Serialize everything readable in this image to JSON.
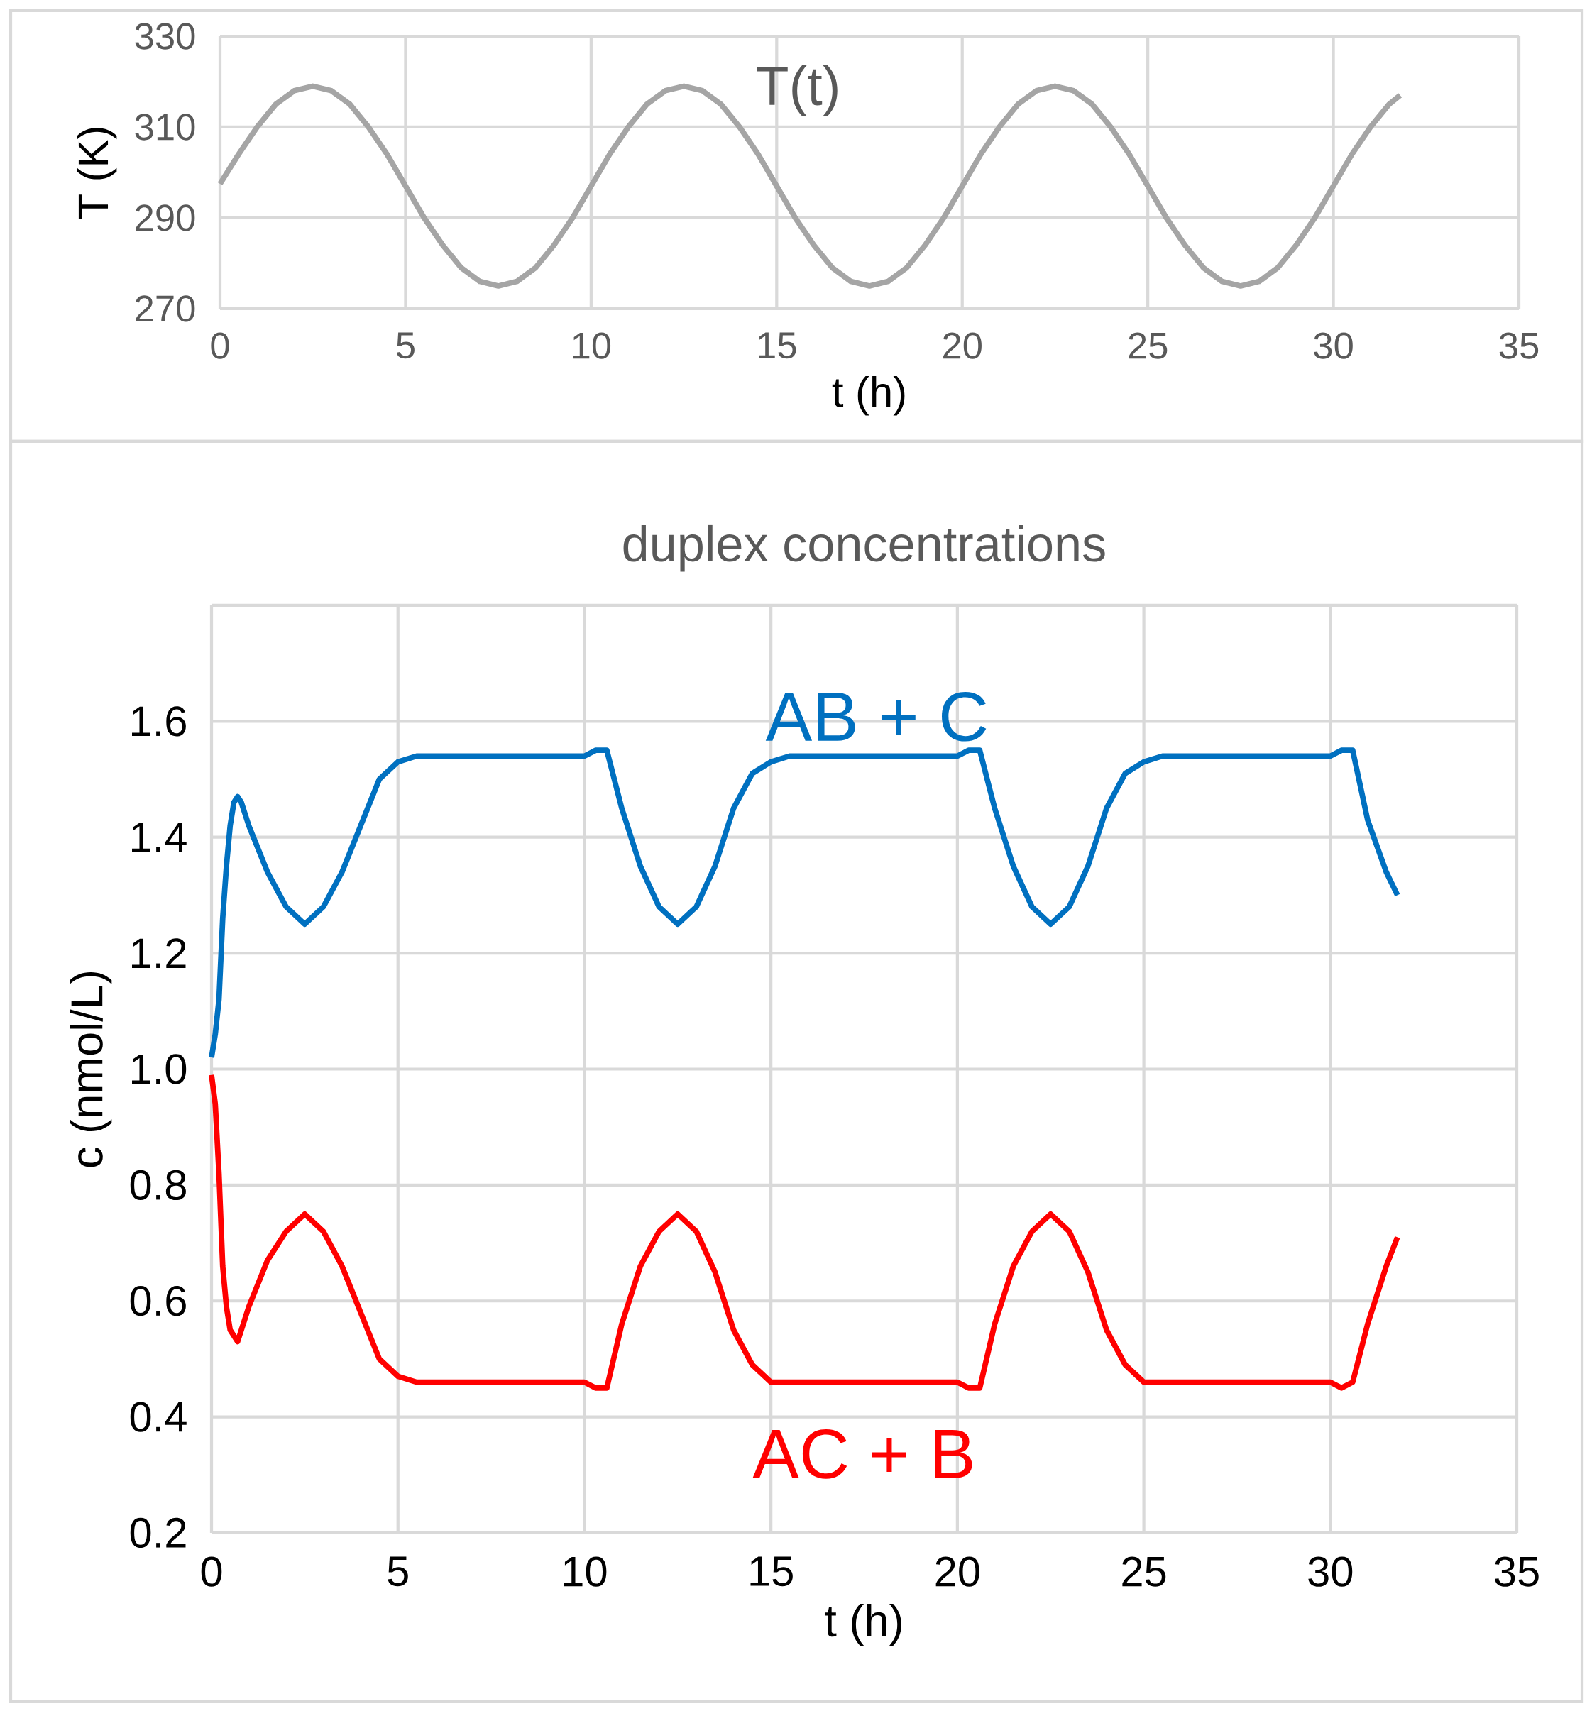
{
  "chart_data": [
    {
      "type": "line",
      "xlabel": "t (h)",
      "ylabel": "T (K)",
      "xlim": [
        0,
        35
      ],
      "xticks": [
        0,
        5,
        10,
        15,
        20,
        25,
        30,
        35
      ],
      "ylim": [
        270,
        330
      ],
      "yticks": [
        270,
        290,
        310,
        330
      ],
      "grid": true,
      "marker": "none",
      "line_style": "solid",
      "series": [
        {
          "name": "T(t)",
          "color": "#a5a5a5",
          "x": [
            0,
            0.5,
            1,
            1.5,
            2,
            2.5,
            3,
            3.5,
            4,
            4.5,
            5,
            5.5,
            6,
            6.5,
            7,
            7.5,
            8,
            8.5,
            9,
            9.5,
            10,
            10.5,
            11,
            11.5,
            12,
            12.5,
            13,
            13.5,
            14,
            14.5,
            15,
            15.5,
            16,
            16.5,
            17,
            17.5,
            18,
            18.5,
            19,
            19.5,
            20,
            20.5,
            21,
            21.5,
            22,
            22.5,
            23,
            23.5,
            24,
            24.5,
            25,
            25.5,
            26,
            26.5,
            27,
            27.5,
            28,
            28.5,
            29,
            29.5,
            30,
            30.5,
            31,
            31.5,
            31.8
          ],
          "values": [
            297.5,
            304,
            310,
            315,
            318,
            319,
            318,
            315,
            310,
            304,
            297,
            290,
            284,
            279,
            276,
            275,
            276,
            279,
            284,
            290,
            297,
            304,
            310,
            315,
            318,
            319,
            318,
            315,
            310,
            304,
            297,
            290,
            284,
            279,
            276,
            275,
            276,
            279,
            284,
            290,
            297,
            304,
            310,
            315,
            318,
            319,
            318,
            315,
            310,
            304,
            297,
            290,
            284,
            279,
            276,
            275,
            276,
            279,
            284,
            290,
            297,
            304,
            310,
            315,
            317
          ]
        }
      ]
    },
    {
      "type": "line",
      "title": "duplex concentrations",
      "xlabel": "t (h)",
      "ylabel": "c (nmol/L)",
      "xlim": [
        0,
        35
      ],
      "xticks": [
        0,
        5,
        10,
        15,
        20,
        25,
        30,
        35
      ],
      "ylim": [
        0.2,
        1.8
      ],
      "yticks": [
        0.2,
        0.4,
        0.6,
        0.8,
        {
          "value": 1.0,
          "label": "1.0"
        },
        1.2,
        1.4,
        1.6,
        {
          "value": 1.8,
          "label": null
        }
      ],
      "grid": true,
      "marker": "none",
      "line_style": "solid",
      "series": [
        {
          "name": "AB + C",
          "color": "#0070c0",
          "x": [
            0,
            0.1,
            0.2,
            0.3,
            0.4,
            0.5,
            0.6,
            0.7,
            0.8,
            1.0,
            1.5,
            2.0,
            2.5,
            3.0,
            3.5,
            4.0,
            4.5,
            5.0,
            5.5,
            10,
            10.3,
            10.6,
            11,
            11.5,
            12,
            12.5,
            13,
            13.5,
            14,
            14.5,
            15,
            15.5,
            20,
            20.3,
            20.6,
            21,
            21.5,
            22,
            22.5,
            23,
            23.5,
            24,
            24.5,
            25,
            25.5,
            30,
            30.3,
            30.6,
            31,
            31.5,
            31.8
          ],
          "values": [
            1.02,
            1.06,
            1.12,
            1.26,
            1.35,
            1.42,
            1.46,
            1.47,
            1.46,
            1.42,
            1.34,
            1.28,
            1.25,
            1.28,
            1.34,
            1.42,
            1.5,
            1.53,
            1.54,
            1.54,
            1.55,
            1.55,
            1.45,
            1.35,
            1.28,
            1.25,
            1.28,
            1.35,
            1.45,
            1.51,
            1.53,
            1.54,
            1.54,
            1.55,
            1.55,
            1.45,
            1.35,
            1.28,
            1.25,
            1.28,
            1.35,
            1.45,
            1.51,
            1.53,
            1.54,
            1.54,
            1.55,
            1.55,
            1.43,
            1.34,
            1.3
          ]
        },
        {
          "name": "AC + B",
          "color": "#ff0000",
          "x": [
            0,
            0.1,
            0.2,
            0.3,
            0.4,
            0.5,
            0.7,
            0.9,
            1.0,
            1.5,
            2.0,
            2.5,
            3.0,
            3.5,
            4.0,
            4.5,
            5.0,
            5.5,
            10,
            10.3,
            10.6,
            11,
            11.5,
            12,
            12.5,
            13,
            13.5,
            14,
            14.5,
            15,
            15.5,
            20,
            20.3,
            20.6,
            21,
            21.5,
            22,
            22.5,
            23,
            23.5,
            24,
            24.5,
            25,
            25.5,
            30,
            30.3,
            30.6,
            31,
            31.5,
            31.8
          ],
          "values": [
            0.99,
            0.94,
            0.82,
            0.66,
            0.59,
            0.55,
            0.53,
            0.57,
            0.59,
            0.67,
            0.72,
            0.75,
            0.72,
            0.66,
            0.58,
            0.5,
            0.47,
            0.46,
            0.46,
            0.45,
            0.45,
            0.56,
            0.66,
            0.72,
            0.75,
            0.72,
            0.65,
            0.55,
            0.49,
            0.46,
            0.46,
            0.46,
            0.45,
            0.45,
            0.56,
            0.66,
            0.72,
            0.75,
            0.72,
            0.65,
            0.55,
            0.49,
            0.46,
            0.46,
            0.46,
            0.45,
            0.46,
            0.56,
            0.66,
            0.71
          ]
        }
      ]
    }
  ]
}
